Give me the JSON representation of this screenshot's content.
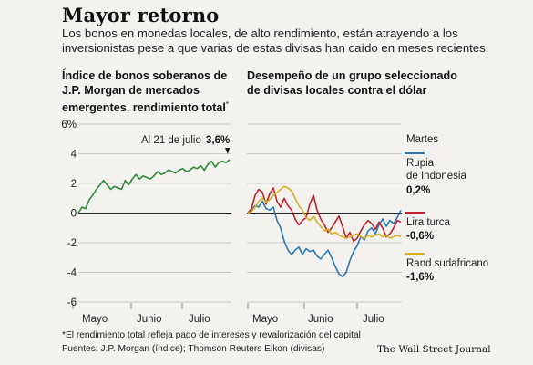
{
  "header": {
    "title": "Mayor retorno",
    "subtitle": "Los bonos en monedas locales, de alto rendimiento, están atrayendo a los inversionistas pese a que varias de estas divisas han caído en meses recientes."
  },
  "footer": {
    "note": "*El rendimiento total refleja pago de intereses y revalorización del capital",
    "sources": "Fuentes: J.P. Morgan (índice); Thomson Reuters Eikon (divisas)",
    "brand": "The Wall Street Journal"
  },
  "chart_data": [
    {
      "type": "line",
      "title": "Índice de bonos soberanos de J.P. Morgan de mercados emergentes, rendimiento total",
      "title_marker": "*",
      "xlabel": "",
      "ylabel": "",
      "ylim": [
        -6,
        6
      ],
      "yticks": [
        6,
        4,
        2,
        0,
        -2,
        -4,
        -6
      ],
      "ytick_labels": [
        "6%",
        "4",
        "2",
        "0",
        "-2",
        "-4",
        "-6"
      ],
      "x_labels": [
        "Mayo",
        "Junio",
        "Julio"
      ],
      "grid": "horizontal",
      "annotation": {
        "text": "Al 21 de julio",
        "value_label": "3,6%",
        "value": 3.6
      },
      "series": [
        {
          "color": "#2e8b3a",
          "x": [
            0,
            2,
            4,
            6,
            8,
            10,
            12,
            14,
            16,
            18,
            20,
            22,
            24,
            26,
            28,
            30,
            32,
            34,
            36,
            38,
            40,
            42,
            44,
            46,
            48,
            50,
            52,
            54,
            56,
            58,
            60,
            62,
            64,
            66,
            68,
            70,
            72,
            74,
            76,
            78,
            80,
            82,
            84
          ],
          "values": [
            0.0,
            0.4,
            0.3,
            0.9,
            1.2,
            1.6,
            1.9,
            2.2,
            1.9,
            1.6,
            1.8,
            1.7,
            1.6,
            2.2,
            1.9,
            2.3,
            2.6,
            2.3,
            2.5,
            2.4,
            2.3,
            2.5,
            2.8,
            2.6,
            2.7,
            2.9,
            2.8,
            2.7,
            2.9,
            3.0,
            2.8,
            2.9,
            3.1,
            3.0,
            3.2,
            2.9,
            3.3,
            3.5,
            3.1,
            3.4,
            3.5,
            3.4,
            3.6
          ]
        }
      ]
    },
    {
      "type": "line",
      "title": "Desempeño de un grupo seleccionado de divisas locales contra el dólar",
      "xlabel": "",
      "ylabel": "",
      "ylim": [
        -6,
        6
      ],
      "x_labels": [
        "Mayo",
        "Junio",
        "Julio"
      ],
      "grid": "horizontal",
      "legend_title": "Martes",
      "legend_placement": "right",
      "series": [
        {
          "name": "Rupia de Indonesia",
          "value_label": "0,2%",
          "color": "#2c79b8",
          "x": [
            0,
            2,
            4,
            6,
            8,
            10,
            12,
            14,
            16,
            18,
            20,
            22,
            24,
            26,
            28,
            30,
            32,
            34,
            36,
            38,
            40,
            42,
            44,
            46,
            48,
            50,
            52,
            54,
            56,
            58,
            60,
            62,
            64,
            66,
            68,
            70,
            72,
            74,
            76,
            78,
            80,
            82,
            84
          ],
          "values": [
            0.0,
            0.2,
            0.5,
            0.4,
            0.8,
            0.3,
            0.2,
            0.4,
            -0.5,
            -1.0,
            -1.9,
            -2.5,
            -2.8,
            -2.5,
            -2.3,
            -2.8,
            -2.4,
            -2.6,
            -2.5,
            -2.9,
            -3.1,
            -2.8,
            -2.5,
            -3.0,
            -3.6,
            -4.1,
            -4.3,
            -4.0,
            -3.2,
            -2.6,
            -2.2,
            -1.6,
            -1.8,
            -1.2,
            -1.0,
            -1.4,
            -0.8,
            -0.4,
            -0.9,
            -0.5,
            -0.7,
            -0.3,
            0.2
          ]
        },
        {
          "name": "Lira turca",
          "value_label": "-0,6%",
          "color": "#c0222e",
          "x": [
            0,
            2,
            4,
            6,
            8,
            10,
            12,
            14,
            16,
            18,
            20,
            22,
            24,
            26,
            28,
            30,
            32,
            34,
            36,
            38,
            40,
            42,
            44,
            46,
            48,
            50,
            52,
            54,
            56,
            58,
            60,
            62,
            64,
            66,
            68,
            70,
            72,
            74,
            76,
            78,
            80,
            82,
            84
          ],
          "values": [
            0.0,
            0.3,
            1.2,
            1.6,
            1.4,
            0.6,
            1.3,
            1.7,
            0.8,
            0.4,
            1.0,
            0.5,
            0.2,
            -0.4,
            -0.8,
            -0.5,
            -0.3,
            0.6,
            1.2,
            0.2,
            -0.4,
            -0.8,
            -1.3,
            -1.0,
            -0.6,
            -0.2,
            -0.9,
            -1.7,
            -1.3,
            -1.9,
            -1.7,
            -1.2,
            -0.8,
            -0.5,
            -0.7,
            -1.1,
            -0.6,
            -1.0,
            -1.6,
            -1.4,
            -1.0,
            -0.5,
            -0.6
          ]
        },
        {
          "name": "Rand sudafricano",
          "value_label": "-1,6%",
          "color": "#d4b022",
          "x": [
            0,
            2,
            4,
            6,
            8,
            10,
            12,
            14,
            16,
            18,
            20,
            22,
            24,
            26,
            28,
            30,
            32,
            34,
            36,
            38,
            40,
            42,
            44,
            46,
            48,
            50,
            52,
            54,
            56,
            58,
            60,
            62,
            64,
            66,
            68,
            70,
            72,
            74,
            76,
            78,
            80,
            82,
            84
          ],
          "values": [
            0.0,
            0.1,
            0.4,
            0.8,
            1.0,
            0.7,
            0.9,
            1.2,
            1.4,
            1.6,
            1.8,
            1.7,
            1.5,
            1.0,
            0.5,
            0.2,
            -0.3,
            -0.5,
            -0.2,
            -0.6,
            -0.9,
            -1.2,
            -1.1,
            -1.4,
            -1.3,
            -1.5,
            -1.6,
            -1.7,
            -1.6,
            -1.5,
            -1.4,
            -1.6,
            -1.7,
            -1.5,
            -1.6,
            -1.5,
            -1.4,
            -1.6,
            -1.5,
            -1.7,
            -1.6,
            -1.5,
            -1.6
          ]
        }
      ]
    }
  ]
}
